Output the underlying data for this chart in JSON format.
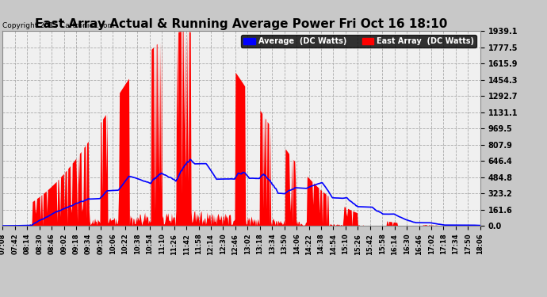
{
  "title": "East Array Actual & Running Average Power Fri Oct 16 18:10",
  "copyright": "Copyright 2015 Cartronics.com",
  "legend_avg": "Average  (DC Watts)",
  "legend_east": "East Array  (DC Watts)",
  "ymin": 0.0,
  "ymax": 1939.1,
  "yticks": [
    0.0,
    161.6,
    323.2,
    484.8,
    646.4,
    807.9,
    969.5,
    1131.1,
    1292.7,
    1454.3,
    1615.9,
    1777.5,
    1939.1
  ],
  "bg_color": "#c8c8c8",
  "plot_bg_color": "#f0f0f0",
  "grid_color": "#aaaaaa",
  "east_color": "#ff0000",
  "avg_color": "#0000ff",
  "title_fontsize": 11,
  "xtick_labels": [
    "07:08",
    "07:42",
    "08:14",
    "08:30",
    "08:46",
    "09:02",
    "09:18",
    "09:34",
    "09:50",
    "10:06",
    "10:22",
    "10:38",
    "10:54",
    "11:10",
    "11:26",
    "11:42",
    "11:58",
    "12:14",
    "12:30",
    "12:46",
    "13:02",
    "13:18",
    "13:34",
    "13:50",
    "14:06",
    "14:22",
    "14:38",
    "14:54",
    "15:10",
    "15:26",
    "15:42",
    "15:58",
    "16:14",
    "16:30",
    "16:46",
    "17:02",
    "17:18",
    "17:34",
    "17:50",
    "18:06"
  ]
}
